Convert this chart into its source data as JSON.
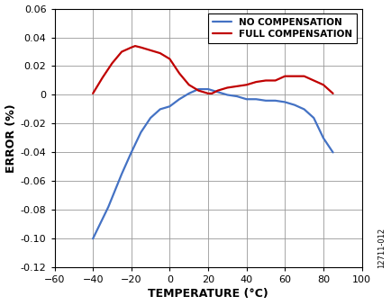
{
  "xlabel": "TEMPERATURE (°C)",
  "ylabel": "ERROR (%)",
  "watermark": "12711-012",
  "xlim": [
    -60,
    100
  ],
  "ylim": [
    -0.12,
    0.06
  ],
  "xticks": [
    -60,
    -40,
    -20,
    0,
    20,
    40,
    60,
    80,
    100
  ],
  "ytick_vals": [
    -0.12,
    -0.1,
    -0.08,
    -0.06,
    -0.04,
    -0.02,
    0,
    0.02,
    0.04,
    0.06
  ],
  "ytick_labels": [
    "-0.12",
    "-0.10",
    "-0.08",
    "-0.06",
    "-0.04",
    "-0.02",
    "0",
    "0.02",
    "0.04",
    "0.06"
  ],
  "no_comp_color": "#4472C4",
  "full_comp_color": "#C00000",
  "no_comp_x": [
    -40,
    -32,
    -25,
    -20,
    -15,
    -10,
    -5,
    0,
    5,
    10,
    15,
    20,
    25,
    30,
    35,
    40,
    45,
    50,
    55,
    60,
    65,
    70,
    75,
    80,
    85
  ],
  "no_comp_y": [
    -0.1,
    -0.078,
    -0.055,
    -0.04,
    -0.026,
    -0.016,
    -0.01,
    -0.008,
    -0.003,
    0.001,
    0.004,
    0.004,
    0.002,
    0.0,
    -0.001,
    -0.003,
    -0.003,
    -0.004,
    -0.004,
    -0.005,
    -0.007,
    -0.01,
    -0.016,
    -0.03,
    -0.04
  ],
  "full_comp_x": [
    -40,
    -35,
    -30,
    -25,
    -20,
    -18,
    -15,
    -10,
    -5,
    0,
    5,
    10,
    15,
    20,
    22,
    25,
    30,
    35,
    40,
    45,
    50,
    55,
    60,
    65,
    70,
    75,
    80,
    85
  ],
  "full_comp_y": [
    0.001,
    0.012,
    0.022,
    0.03,
    0.033,
    0.034,
    0.033,
    0.031,
    0.029,
    0.025,
    0.015,
    0.007,
    0.003,
    0.001,
    0.001,
    0.003,
    0.005,
    0.006,
    0.007,
    0.009,
    0.01,
    0.01,
    0.013,
    0.013,
    0.013,
    0.01,
    0.007,
    0.001
  ],
  "legend_no_comp": "NO COMPENSATION",
  "legend_full_comp": "FULL COMPENSATION",
  "background_color": "#ffffff",
  "grid_color": "#999999",
  "line_width": 1.6,
  "tick_fontsize": 8,
  "label_fontsize": 9
}
